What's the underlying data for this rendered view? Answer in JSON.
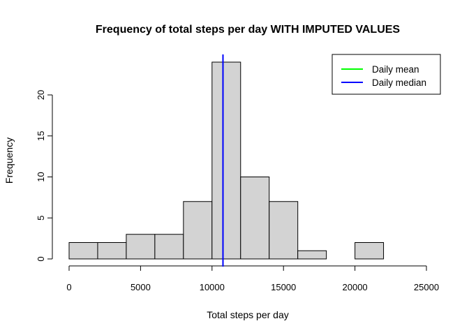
{
  "chart_data": {
    "type": "bar",
    "title": "Frequency of total steps per day WITH IMPUTED VALUES",
    "xlabel": "Total steps per day",
    "ylabel": "Frequency",
    "bins": [
      {
        "start": 0,
        "end": 2000,
        "count": 2
      },
      {
        "start": 2000,
        "end": 4000,
        "count": 2
      },
      {
        "start": 4000,
        "end": 6000,
        "count": 3
      },
      {
        "start": 6000,
        "end": 8000,
        "count": 3
      },
      {
        "start": 8000,
        "end": 10000,
        "count": 7
      },
      {
        "start": 10000,
        "end": 12000,
        "count": 24
      },
      {
        "start": 12000,
        "end": 14000,
        "count": 10
      },
      {
        "start": 14000,
        "end": 16000,
        "count": 7
      },
      {
        "start": 16000,
        "end": 18000,
        "count": 1
      },
      {
        "start": 18000,
        "end": 20000,
        "count": 0
      },
      {
        "start": 20000,
        "end": 22000,
        "count": 2
      }
    ],
    "xlim": [
      0,
      25000
    ],
    "ylim": [
      0,
      24
    ],
    "xticks": [
      0,
      5000,
      10000,
      15000,
      20000,
      25000
    ],
    "yticks": [
      0,
      5,
      10,
      15,
      20
    ],
    "mean": 10766.19,
    "median": 10766.19,
    "grid": false,
    "legend_position": "top-right",
    "legend": [
      {
        "label": "Daily mean",
        "color": "#00ff00"
      },
      {
        "label": "Daily median",
        "color": "#0000ff"
      }
    ]
  }
}
